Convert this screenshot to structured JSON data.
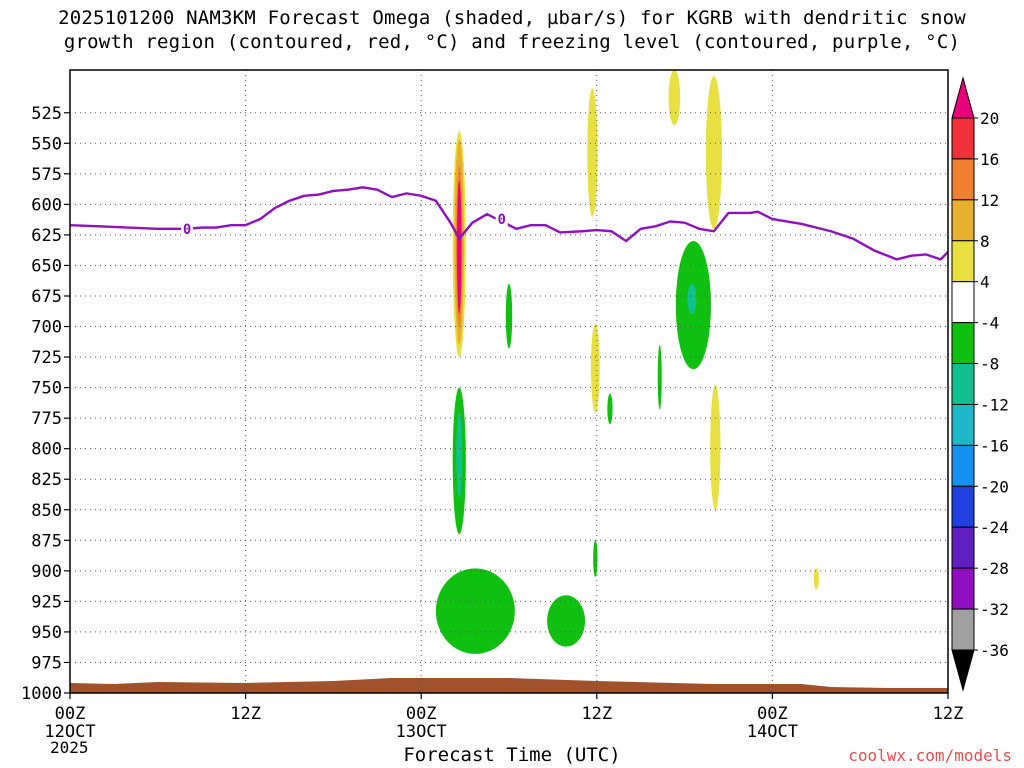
{
  "title": {
    "line1": "2025101200 NAM3KM Forecast Omega (shaded, µbar/s) for KGRB with dendritic snow",
    "line2": "growth region (contoured, red, °C) and freezing level (contoured, purple, °C)"
  },
  "chart_data": {
    "type": "heatmap",
    "title": "2025101200 NAM3KM Forecast Omega (shaded, µbar/s) for KGRB with dendritic snow growth region (contoured, red, °C) and freezing level (contoured, purple, °C)",
    "xlabel": "Forecast Time (UTC)",
    "ylabel": "",
    "x_range_hours": [
      0,
      60
    ],
    "y_range_mb": [
      1000,
      490
    ],
    "y_ticks": [
      525,
      550,
      575,
      600,
      625,
      650,
      675,
      700,
      725,
      750,
      775,
      800,
      825,
      850,
      875,
      900,
      925,
      950,
      975,
      1000
    ],
    "x_ticks": [
      {
        "hour": 0,
        "label": "00Z",
        "sub": "12OCT"
      },
      {
        "hour": 12,
        "label": "12Z",
        "sub": ""
      },
      {
        "hour": 24,
        "label": "00Z",
        "sub": "13OCT"
      },
      {
        "hour": 36,
        "label": "12Z",
        "sub": ""
      },
      {
        "hour": 48,
        "label": "00Z",
        "sub": "14OCT"
      },
      {
        "hour": 60,
        "label": "12Z",
        "sub": ""
      }
    ],
    "year_label": "2025",
    "grid": true,
    "colorbar": {
      "levels": [
        20,
        16,
        12,
        8,
        4,
        -4,
        -8,
        -12,
        -16,
        -20,
        -24,
        -28,
        -32,
        -36
      ],
      "colors": [
        "#e8007a",
        "#f0303a",
        "#f08030",
        "#e8b030",
        "#e8e040",
        "#ffffff",
        "#10c010",
        "#10c090",
        "#20b8c8",
        "#1890f0",
        "#2040e0",
        "#6020c0",
        "#9010c0",
        "#a0a0a0",
        "#000000"
      ]
    },
    "freezing_level_label": "0",
    "freezing_level": [
      {
        "h": 0,
        "p": 617
      },
      {
        "h": 2,
        "p": 618
      },
      {
        "h": 4,
        "p": 619
      },
      {
        "h": 6,
        "p": 620
      },
      {
        "h": 8,
        "p": 620
      },
      {
        "h": 9,
        "p": 619
      },
      {
        "h": 10,
        "p": 619
      },
      {
        "h": 11,
        "p": 617
      },
      {
        "h": 12,
        "p": 617
      },
      {
        "h": 13,
        "p": 612
      },
      {
        "h": 14,
        "p": 603
      },
      {
        "h": 15,
        "p": 597
      },
      {
        "h": 16,
        "p": 593
      },
      {
        "h": 17,
        "p": 592
      },
      {
        "h": 18,
        "p": 589
      },
      {
        "h": 19,
        "p": 588
      },
      {
        "h": 20,
        "p": 586
      },
      {
        "h": 21,
        "p": 588
      },
      {
        "h": 22,
        "p": 594
      },
      {
        "h": 23,
        "p": 591
      },
      {
        "h": 24,
        "p": 593
      },
      {
        "h": 25,
        "p": 597
      },
      {
        "h": 26,
        "p": 615
      },
      {
        "h": 26.6,
        "p": 628
      },
      {
        "h": 27.5,
        "p": 615
      },
      {
        "h": 28.5,
        "p": 608
      },
      {
        "h": 29.5,
        "p": 614
      },
      {
        "h": 30.5,
        "p": 620
      },
      {
        "h": 31.5,
        "p": 617
      },
      {
        "h": 32.5,
        "p": 617
      },
      {
        "h": 33.5,
        "p": 623
      },
      {
        "h": 35,
        "p": 622
      },
      {
        "h": 36,
        "p": 621
      },
      {
        "h": 37,
        "p": 622
      },
      {
        "h": 38,
        "p": 630
      },
      {
        "h": 39,
        "p": 620
      },
      {
        "h": 40,
        "p": 618
      },
      {
        "h": 41,
        "p": 614
      },
      {
        "h": 42,
        "p": 615
      },
      {
        "h": 43,
        "p": 620
      },
      {
        "h": 44,
        "p": 622
      },
      {
        "h": 45,
        "p": 607
      },
      {
        "h": 46.5,
        "p": 607
      },
      {
        "h": 47,
        "p": 606
      },
      {
        "h": 48,
        "p": 612
      },
      {
        "h": 50,
        "p": 616
      },
      {
        "h": 52,
        "p": 622
      },
      {
        "h": 53.5,
        "p": 628
      },
      {
        "h": 55,
        "p": 638
      },
      {
        "h": 56.5,
        "p": 645
      },
      {
        "h": 57.5,
        "p": 642
      },
      {
        "h": 58.5,
        "p": 641
      },
      {
        "h": 59.5,
        "p": 645
      },
      {
        "h": 60,
        "p": 639
      }
    ],
    "omega_regions": [
      {
        "h": 26.6,
        "p_top": 540,
        "p_bottom": 725,
        "hw": 0.45,
        "level": 4
      },
      {
        "h": 26.6,
        "p_top": 547,
        "p_bottom": 715,
        "hw": 0.33,
        "level": 8
      },
      {
        "h": 26.6,
        "p_top": 568,
        "p_bottom": 700,
        "hw": 0.22,
        "level": 12
      },
      {
        "h": 26.6,
        "p_top": 580,
        "p_bottom": 690,
        "hw": 0.16,
        "level": 16
      },
      {
        "h": 26.6,
        "p_top": 582,
        "p_bottom": 688,
        "hw": 0.12,
        "level": 20
      },
      {
        "h": 35.7,
        "p_top": 505,
        "p_bottom": 610,
        "hw": 0.35,
        "level": 4
      },
      {
        "h": 41.3,
        "p_top": 490,
        "p_bottom": 535,
        "hw": 0.4,
        "level": 4
      },
      {
        "h": 44.0,
        "p_top": 495,
        "p_bottom": 620,
        "hw": 0.55,
        "level": 4
      },
      {
        "h": 35.9,
        "p_top": 698,
        "p_bottom": 770,
        "hw": 0.3,
        "level": 4
      },
      {
        "h": 44.1,
        "p_top": 748,
        "p_bottom": 850,
        "hw": 0.35,
        "level": 4
      },
      {
        "h": 51.0,
        "p_top": 898,
        "p_bottom": 915,
        "hw": 0.18,
        "level": 4
      },
      {
        "h": 26.6,
        "p_top": 750,
        "p_bottom": 870,
        "hw": 0.45,
        "level": -4
      },
      {
        "h": 26.6,
        "p_top": 770,
        "p_bottom": 840,
        "hw": 0.2,
        "level": -8
      },
      {
        "h": 30.0,
        "p_top": 665,
        "p_bottom": 718,
        "hw": 0.22,
        "level": -4
      },
      {
        "h": 36.9,
        "p_top": 755,
        "p_bottom": 780,
        "hw": 0.18,
        "level": -4
      },
      {
        "h": 40.3,
        "p_top": 715,
        "p_bottom": 768,
        "hw": 0.12,
        "level": -4
      },
      {
        "h": 35.9,
        "p_top": 875,
        "p_bottom": 905,
        "hw": 0.15,
        "level": -4
      },
      {
        "h": 42.6,
        "p_top": 630,
        "p_bottom": 735,
        "hw": 1.2,
        "level": -4
      },
      {
        "h": 42.5,
        "p_top": 665,
        "p_bottom": 690,
        "hw": 0.3,
        "level": -8
      },
      {
        "h": 27.7,
        "p_top": 898,
        "p_bottom": 968,
        "hw": 2.7,
        "level": -4
      },
      {
        "h": 33.9,
        "p_top": 920,
        "p_bottom": 962,
        "hw": 1.3,
        "level": -4
      }
    ]
  },
  "credit": "coolwx.com/models"
}
